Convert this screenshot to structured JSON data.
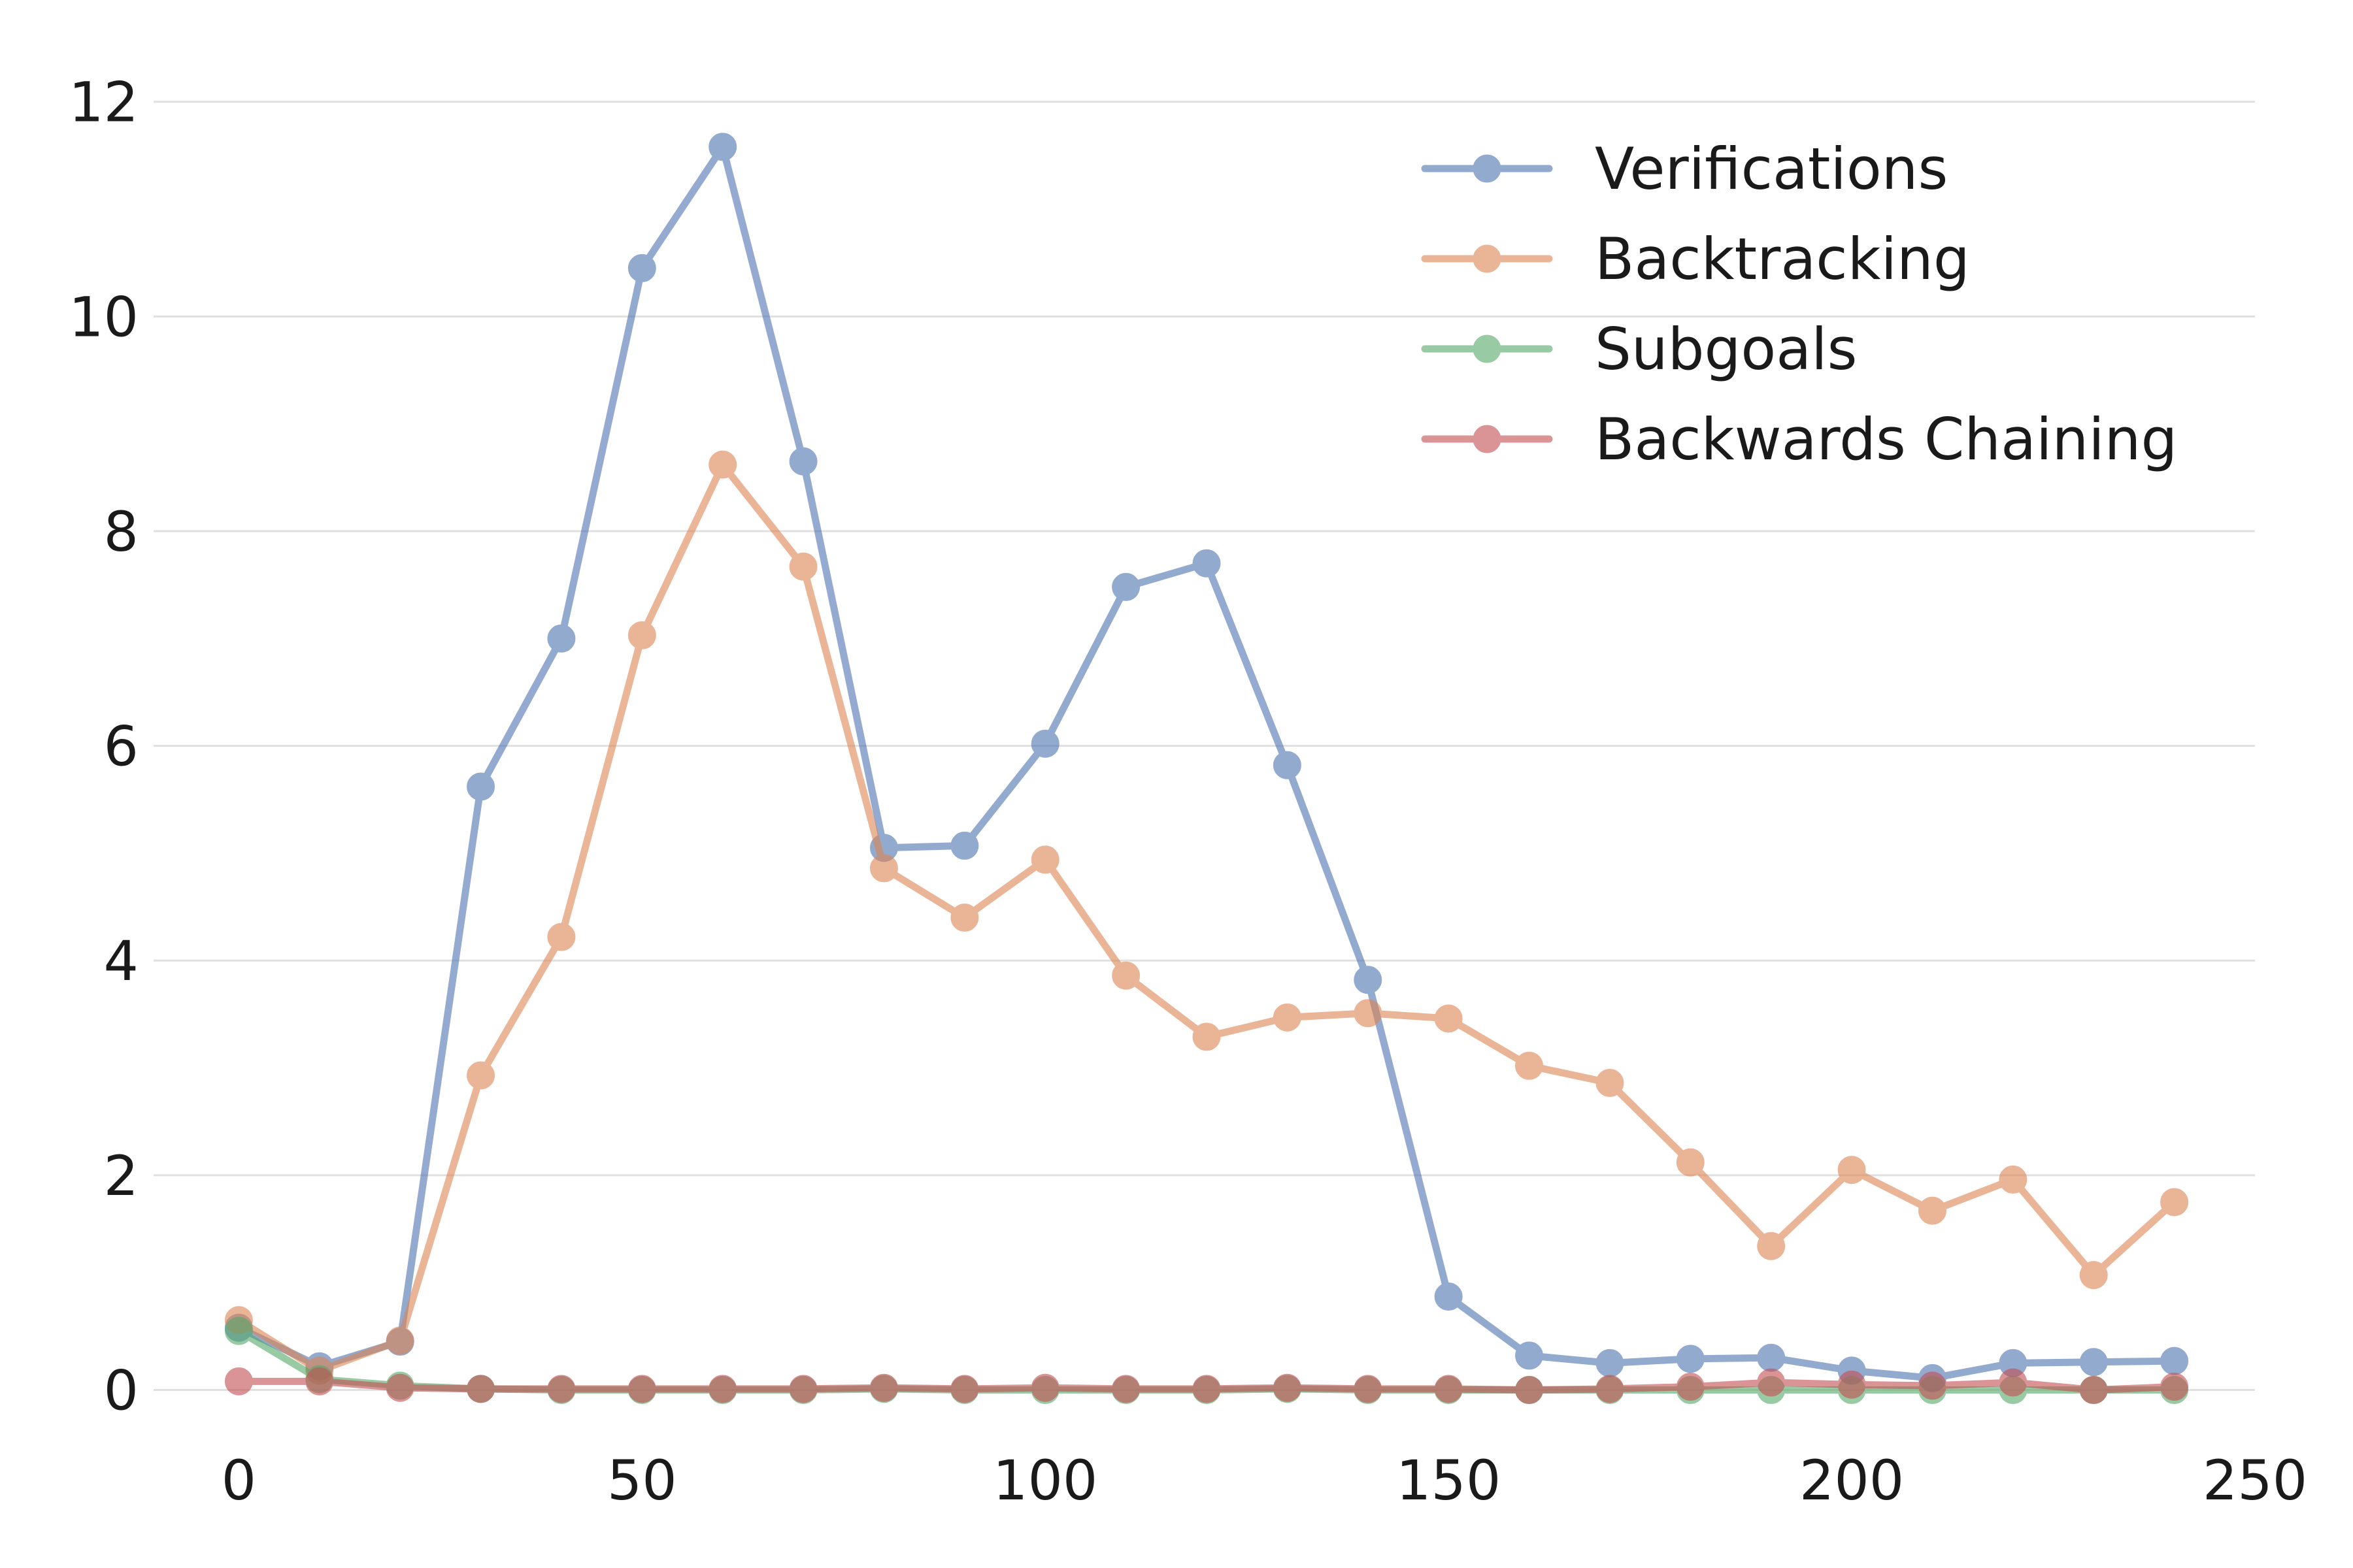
{
  "chart_data": {
    "type": "line",
    "title": "",
    "xlabel": "",
    "ylabel": "",
    "x": [
      0,
      10,
      20,
      30,
      40,
      50,
      60,
      70,
      80,
      90,
      100,
      110,
      120,
      130,
      140,
      150,
      160,
      170,
      180,
      190,
      200,
      210,
      220,
      230,
      240
    ],
    "xlim": [
      -10,
      250
    ],
    "ylim": [
      -0.35,
      12.4
    ],
    "xticks": [
      0,
      50,
      100,
      150,
      200,
      250
    ],
    "yticks": [
      0,
      2,
      4,
      6,
      8,
      10,
      12
    ],
    "grid": "horizontal",
    "legend_position": "top-right",
    "series": [
      {
        "name": "Verifications",
        "color": "#4c72b0",
        "values": [
          0.58,
          0.22,
          0.45,
          5.62,
          7.0,
          10.45,
          11.58,
          8.65,
          5.05,
          5.07,
          6.02,
          7.48,
          7.7,
          5.82,
          3.82,
          0.87,
          0.32,
          0.25,
          0.29,
          0.3,
          0.18,
          0.11,
          0.25,
          0.26,
          0.27
        ]
      },
      {
        "name": "Backtracking",
        "color": "#dd8452",
        "values": [
          0.65,
          0.18,
          0.46,
          2.93,
          4.22,
          7.03,
          8.62,
          7.67,
          4.86,
          4.4,
          4.94,
          3.86,
          3.29,
          3.47,
          3.51,
          3.46,
          3.02,
          2.86,
          2.12,
          1.34,
          2.05,
          1.67,
          1.96,
          1.07,
          1.75
        ]
      },
      {
        "name": "Subgoals",
        "color": "#55a868",
        "values": [
          0.55,
          0.1,
          0.04,
          0.01,
          0.0,
          0.0,
          0.0,
          0.0,
          0.01,
          0.0,
          0.0,
          0.0,
          0.0,
          0.01,
          0.0,
          0.0,
          0.0,
          0.0,
          0.0,
          0.0,
          0.0,
          0.0,
          0.0,
          0.0,
          0.0
        ]
      },
      {
        "name": "Backwards Chaining",
        "color": "#c44e52",
        "values": [
          0.08,
          0.08,
          0.02,
          0.01,
          0.01,
          0.01,
          0.01,
          0.01,
          0.02,
          0.01,
          0.02,
          0.01,
          0.01,
          0.02,
          0.01,
          0.01,
          0.0,
          0.01,
          0.03,
          0.07,
          0.05,
          0.04,
          0.07,
          0.0,
          0.03
        ]
      }
    ]
  }
}
